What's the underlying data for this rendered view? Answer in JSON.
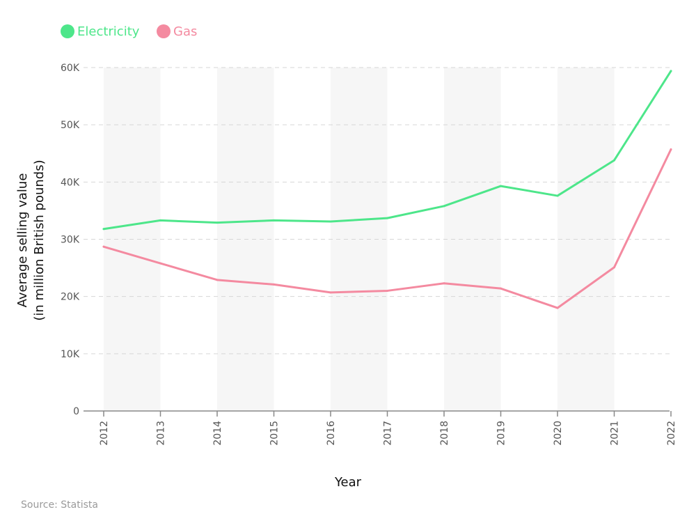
{
  "chart_data": {
    "type": "line",
    "title": "",
    "categories": [
      "2012",
      "2013",
      "2014",
      "2015",
      "2016",
      "2017",
      "2018",
      "2019",
      "2020",
      "2021",
      "2022"
    ],
    "series": [
      {
        "name": "Electricity",
        "color": "#4de68a",
        "values": [
          31800,
          33300,
          32900,
          33300,
          33100,
          33700,
          35800,
          39300,
          37600,
          43800,
          59400
        ]
      },
      {
        "name": "Gas",
        "color": "#f48aa0",
        "values": [
          28700,
          25800,
          22900,
          22100,
          20700,
          21000,
          22300,
          21400,
          18000,
          25100,
          45700
        ]
      }
    ],
    "y_ticks": [
      0,
      10000,
      20000,
      30000,
      40000,
      50000,
      60000
    ],
    "y_tick_labels": [
      "0",
      "10K",
      "20K",
      "30K",
      "40K",
      "50K",
      "60K"
    ],
    "ylim": [
      0,
      60000
    ],
    "xlabel": "Year",
    "ylabel_line1": "Average selling value",
    "ylabel_line2": "(in million British pounds)",
    "legend_position": "top-left",
    "grid": "dashed horizontal",
    "source": "Source: Statista",
    "band_color": "#f6f6f6",
    "grid_color": "#d6d6d6",
    "axis_color": "#888888"
  }
}
